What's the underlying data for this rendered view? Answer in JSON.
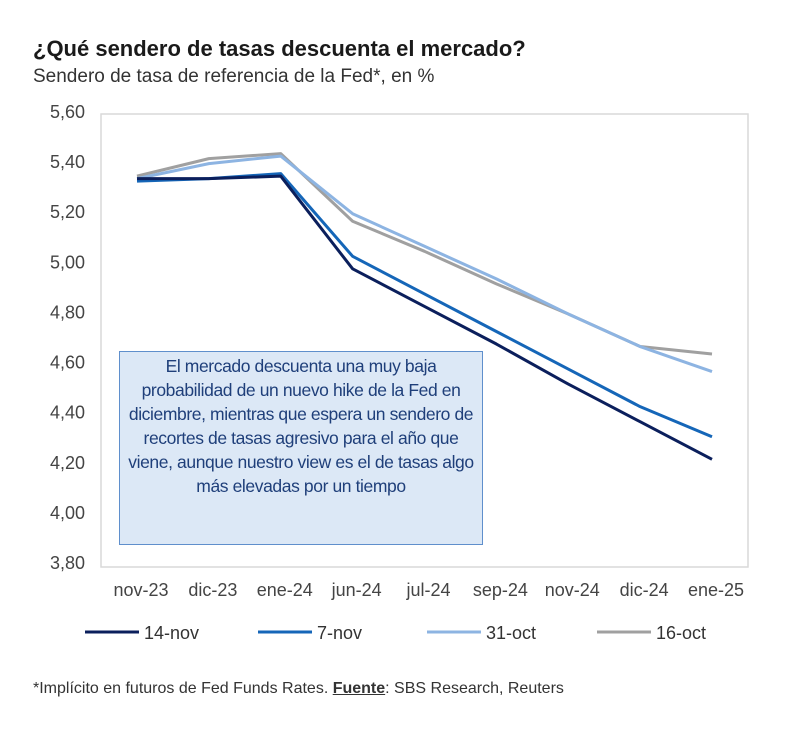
{
  "title": "¿Qué sendero de tasas descuenta el mercado?",
  "subtitle": "Sendero de tasa de referencia de la Fed*, en %",
  "footnote": {
    "text": "*Implícito en futuros de Fed Funds Rates. ",
    "source_label": "Fuente",
    "source": ": SBS Research, Reuters"
  },
  "annotation": "El mercado descuenta una muy baja probabilidad de un nuevo hike de la Fed en diciembre, mientras que espera un sendero de recortes de tasas agresivo para el año que viene, aunque nuestro view es el de tasas algo más elevadas por un tiempo",
  "chart_data": {
    "type": "line",
    "title": "¿Qué sendero de tasas descuenta el mercado?",
    "ylabel": "%",
    "xlabel": "",
    "ylim": [
      3.8,
      5.6
    ],
    "yticks": [
      "5,60",
      "5,40",
      "5,20",
      "5,00",
      "4,80",
      "4,60",
      "4,40",
      "4,20",
      "4,00",
      "3,80"
    ],
    "ytick_values": [
      5.6,
      5.4,
      5.2,
      5.0,
      4.8,
      4.6,
      4.4,
      4.2,
      4.0,
      3.8
    ],
    "categories": [
      "nov-23",
      "dic-23",
      "ene-24",
      "jun-24",
      "jul-24",
      "sep-24",
      "nov-24",
      "dic-24",
      "ene-25"
    ],
    "legend_position": "bottom",
    "grid": false,
    "series": [
      {
        "name": "14-nov",
        "color": "#0b1f5c",
        "values": [
          5.33,
          5.33,
          5.34,
          4.97,
          4.82,
          4.67,
          4.51,
          4.36,
          4.21
        ]
      },
      {
        "name": "7-nov",
        "color": "#1566b8",
        "values": [
          5.32,
          5.33,
          5.35,
          5.02,
          4.87,
          4.72,
          4.57,
          4.42,
          4.3
        ]
      },
      {
        "name": "31-oct",
        "color": "#8db4e2",
        "values": [
          5.33,
          5.39,
          5.42,
          5.19,
          5.06,
          4.93,
          4.79,
          4.66,
          4.56
        ]
      },
      {
        "name": "16-oct",
        "color": "#a0a0a0",
        "values": [
          5.34,
          5.41,
          5.43,
          5.16,
          5.04,
          4.91,
          4.79,
          4.66,
          4.63
        ]
      }
    ]
  }
}
